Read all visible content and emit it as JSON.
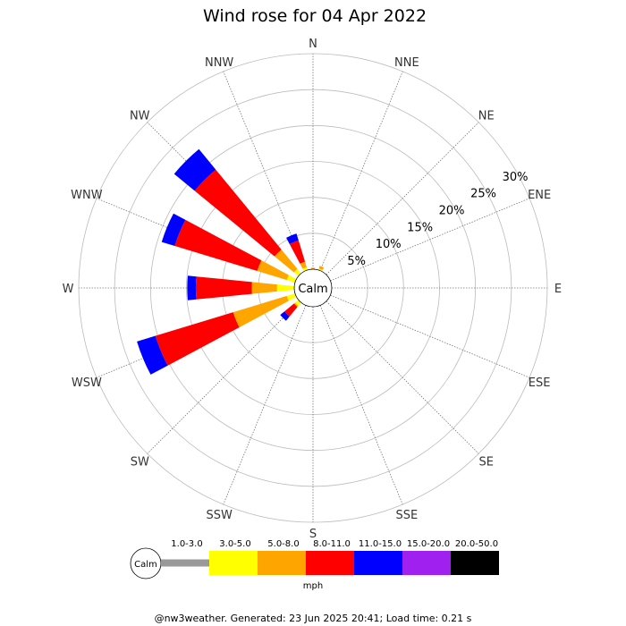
{
  "chart_data": {
    "type": "wind-rose",
    "title": "Wind rose for 04 Apr 2022",
    "directions": [
      "N",
      "NNE",
      "NE",
      "ENE",
      "E",
      "ESE",
      "SE",
      "SSE",
      "S",
      "SSW",
      "SW",
      "WSW",
      "W",
      "WNW",
      "NW",
      "NNW"
    ],
    "direction_angles_deg": [
      0,
      22.5,
      45,
      67.5,
      90,
      112.5,
      135,
      157.5,
      180,
      202.5,
      225,
      247.5,
      270,
      292.5,
      315,
      337.5
    ],
    "ring_labels": [
      "5%",
      "10%",
      "15%",
      "20%",
      "25%",
      "30%"
    ],
    "ring_values": [
      5,
      10,
      15,
      20,
      25,
      30
    ],
    "r_max": 30,
    "calm_label": "Calm",
    "unit": "mph",
    "speed_bins": [
      {
        "label": "1.0-3.0",
        "color": "#999999"
      },
      {
        "label": "3.0-5.0",
        "color": "#ffff00"
      },
      {
        "label": "5.0-8.0",
        "color": "#ffa500"
      },
      {
        "label": "8.0-11.0",
        "color": "#ff0000"
      },
      {
        "label": "11.0-15.0",
        "color": "#0000ff"
      },
      {
        "label": "15.0-20.0",
        "color": "#a020f0"
      },
      {
        "label": "20.0-50.0",
        "color": "#000000"
      }
    ],
    "series": [
      {
        "direction": "N",
        "cumulative": [
          0.0,
          0.0,
          0.2,
          0.2,
          0.2,
          0.2,
          0.2
        ]
      },
      {
        "direction": "NNE",
        "cumulative": [
          0.0,
          0.2,
          0.6,
          0.6,
          0.6,
          0.6,
          0.6
        ]
      },
      {
        "direction": "NE",
        "cumulative": [
          0.0,
          0.0,
          0.0,
          0.0,
          0.0,
          0.0,
          0.0
        ]
      },
      {
        "direction": "ENE",
        "cumulative": [
          0.0,
          0.0,
          0.0,
          0.0,
          0.0,
          0.0,
          0.0
        ]
      },
      {
        "direction": "E",
        "cumulative": [
          0.0,
          0.0,
          0.0,
          0.0,
          0.0,
          0.0,
          0.0
        ]
      },
      {
        "direction": "ESE",
        "cumulative": [
          0.0,
          0.0,
          0.0,
          0.0,
          0.0,
          0.0,
          0.0
        ]
      },
      {
        "direction": "SE",
        "cumulative": [
          0.0,
          0.0,
          0.0,
          0.0,
          0.0,
          0.0,
          0.0
        ]
      },
      {
        "direction": "SSE",
        "cumulative": [
          0.0,
          0.0,
          0.0,
          0.0,
          0.0,
          0.0,
          0.0
        ]
      },
      {
        "direction": "S",
        "cumulative": [
          0.0,
          0.0,
          0.0,
          0.0,
          0.0,
          0.0,
          0.0
        ]
      },
      {
        "direction": "SSW",
        "cumulative": [
          0.0,
          0.0,
          0.0,
          0.0,
          0.0,
          0.0,
          0.0
        ]
      },
      {
        "direction": "SW",
        "cumulative": [
          0.0,
          0.6,
          0.8,
          2.5,
          3.3,
          3.3,
          3.3
        ]
      },
      {
        "direction": "WSW",
        "cumulative": [
          0.0,
          1.2,
          9.0,
          20.3,
          23.0,
          23.0,
          23.0
        ]
      },
      {
        "direction": "W",
        "cumulative": [
          0.0,
          2.4,
          5.9,
          13.7,
          14.9,
          14.9,
          14.9
        ]
      },
      {
        "direction": "WNW",
        "cumulative": [
          0.0,
          1.2,
          5.5,
          17.5,
          19.4,
          19.4,
          19.4
        ]
      },
      {
        "direction": "NW",
        "cumulative": [
          0.0,
          0.8,
          4.3,
          18.7,
          22.4,
          22.4,
          22.4
        ]
      },
      {
        "direction": "NNW",
        "cumulative": [
          0.0,
          0.4,
          1.2,
          4.3,
          5.3,
          5.3,
          5.3
        ]
      }
    ]
  },
  "footer_text": "@nw3weather. Generated: 23 Jun 2025 20:41; Load time: 0.21 s"
}
